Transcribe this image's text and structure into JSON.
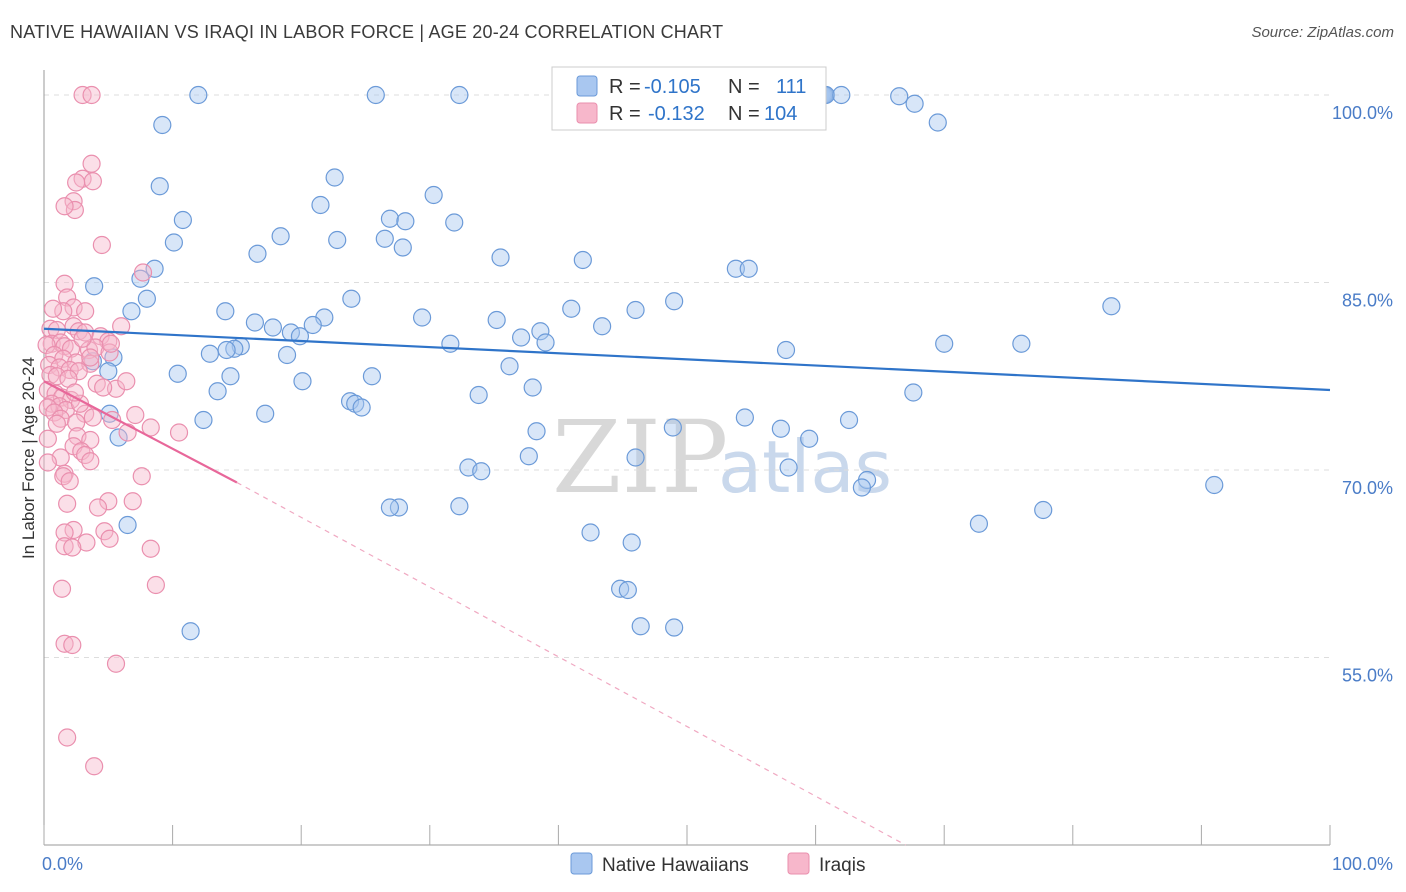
{
  "title": "NATIVE HAWAIIAN VS IRAQI IN LABOR FORCE | AGE 20-24 CORRELATION CHART",
  "source": "Source: ZipAtlas.com",
  "watermark": {
    "zip": "ZIP",
    "atlas": "atlas"
  },
  "colors": {
    "blue_fill": "#a9c7f0",
    "blue_stroke": "#6b9ad8",
    "blue_line": "#2f74c9",
    "pink_fill": "#f7b7cb",
    "pink_stroke": "#ea8fae",
    "pink_line": "#e8679a",
    "grid": "#dddddd",
    "tick_label": "#4a7cc7"
  },
  "stats": [
    {
      "r_label": "R =",
      "r_value": "-0.105",
      "n_label": "N =",
      "n_value": "111",
      "series": "Native Hawaiians"
    },
    {
      "r_label": "R =",
      "r_value": "-0.132",
      "n_label": "N =",
      "n_value": "104",
      "series": "Iraqis"
    }
  ],
  "chart_data": {
    "type": "scatter",
    "title": "NATIVE HAWAIIAN VS IRAQI IN LABOR FORCE | AGE 20-24 CORRELATION CHART",
    "xlabel": "",
    "ylabel": "In Labor Force | Age 20-24",
    "xlim": [
      0,
      100
    ],
    "ylim": [
      40,
      102
    ],
    "x_tick_labels": [
      {
        "value": 0,
        "label": "0.0%"
      },
      {
        "value": 100,
        "label": "100.0%"
      }
    ],
    "y_tick_labels": [
      {
        "value": 100,
        "label": "100.0%"
      },
      {
        "value": 85,
        "label": "85.0%"
      },
      {
        "value": 70,
        "label": "70.0%"
      },
      {
        "value": 55,
        "label": "55.0%"
      }
    ],
    "grid_y": [
      100,
      85,
      70,
      55
    ],
    "legend_position": "bottom",
    "series": [
      {
        "name": "Native Hawaiians",
        "color": "#6b9ad8",
        "trend": {
          "x0": 0,
          "y0": 81.3,
          "x1": 100,
          "y1": 76.4
        },
        "points": [
          [
            12.0,
            100.0
          ],
          [
            25.8,
            100.0
          ],
          [
            32.3,
            100.0
          ],
          [
            60.2,
            100.0
          ],
          [
            60.3,
            100.0
          ],
          [
            60.4,
            100.0
          ],
          [
            60.5,
            100.0
          ],
          [
            60.6,
            100.0
          ],
          [
            60.7,
            100.0
          ],
          [
            60.8,
            100.0
          ],
          [
            62.0,
            100.0
          ],
          [
            66.5,
            99.9
          ],
          [
            67.7,
            99.3
          ],
          [
            69.5,
            97.8
          ],
          [
            9.2,
            97.6
          ],
          [
            22.6,
            93.4
          ],
          [
            9.0,
            92.7
          ],
          [
            21.5,
            91.2
          ],
          [
            30.3,
            92.0
          ],
          [
            10.8,
            90.0
          ],
          [
            26.9,
            90.1
          ],
          [
            28.1,
            89.9
          ],
          [
            31.9,
            89.8
          ],
          [
            18.4,
            88.7
          ],
          [
            22.8,
            88.4
          ],
          [
            26.5,
            88.5
          ],
          [
            10.1,
            88.2
          ],
          [
            27.9,
            87.8
          ],
          [
            16.6,
            87.3
          ],
          [
            35.5,
            87.0
          ],
          [
            41.9,
            86.8
          ],
          [
            8.6,
            86.1
          ],
          [
            53.8,
            86.1
          ],
          [
            54.8,
            86.1
          ],
          [
            7.5,
            85.3
          ],
          [
            3.9,
            84.7
          ],
          [
            8.0,
            83.7
          ],
          [
            49.0,
            83.5
          ],
          [
            41.0,
            82.9
          ],
          [
            46.0,
            82.8
          ],
          [
            14.1,
            82.7
          ],
          [
            23.9,
            83.7
          ],
          [
            6.8,
            82.7
          ],
          [
            21.8,
            82.2
          ],
          [
            29.4,
            82.2
          ],
          [
            35.2,
            82.0
          ],
          [
            16.4,
            81.8
          ],
          [
            20.9,
            81.6
          ],
          [
            43.4,
            81.5
          ],
          [
            17.8,
            81.4
          ],
          [
            19.2,
            81.0
          ],
          [
            19.9,
            80.7
          ],
          [
            38.6,
            81.1
          ],
          [
            39.0,
            80.2
          ],
          [
            37.1,
            80.6
          ],
          [
            31.6,
            80.1
          ],
          [
            15.3,
            79.9
          ],
          [
            14.8,
            79.7
          ],
          [
            14.2,
            79.6
          ],
          [
            12.9,
            79.3
          ],
          [
            18.9,
            79.2
          ],
          [
            70.0,
            80.1
          ],
          [
            76.0,
            80.1
          ],
          [
            83.0,
            83.1
          ],
          [
            5.4,
            79.0
          ],
          [
            3.8,
            78.7
          ],
          [
            5.0,
            77.9
          ],
          [
            36.2,
            78.3
          ],
          [
            10.4,
            77.7
          ],
          [
            14.5,
            77.5
          ],
          [
            25.5,
            77.5
          ],
          [
            20.1,
            77.1
          ],
          [
            38.0,
            76.6
          ],
          [
            13.5,
            76.3
          ],
          [
            33.8,
            76.0
          ],
          [
            67.6,
            76.2
          ],
          [
            23.8,
            75.5
          ],
          [
            24.2,
            75.3
          ],
          [
            24.7,
            75.0
          ],
          [
            17.2,
            74.5
          ],
          [
            12.4,
            74.0
          ],
          [
            5.1,
            74.5
          ],
          [
            54.5,
            74.2
          ],
          [
            62.6,
            74.0
          ],
          [
            48.9,
            73.4
          ],
          [
            57.3,
            73.3
          ],
          [
            38.3,
            73.1
          ],
          [
            59.5,
            72.5
          ],
          [
            5.8,
            72.6
          ],
          [
            37.7,
            71.1
          ],
          [
            46.0,
            71.0
          ],
          [
            57.9,
            70.2
          ],
          [
            33.0,
            70.2
          ],
          [
            34.0,
            69.9
          ],
          [
            64.0,
            69.2
          ],
          [
            63.6,
            68.6
          ],
          [
            91.0,
            68.8
          ],
          [
            32.3,
            67.1
          ],
          [
            27.6,
            67.0
          ],
          [
            26.9,
            67.0
          ],
          [
            77.7,
            66.8
          ],
          [
            72.7,
            65.7
          ],
          [
            6.5,
            65.6
          ],
          [
            42.5,
            65.0
          ],
          [
            45.7,
            64.2
          ],
          [
            44.8,
            60.5
          ],
          [
            45.4,
            60.4
          ],
          [
            46.4,
            57.5
          ],
          [
            49.0,
            57.4
          ],
          [
            11.4,
            57.1
          ],
          [
            57.7,
            79.6
          ]
        ]
      },
      {
        "name": "Iraqis",
        "color": "#ea8fae",
        "trend": {
          "x0": 0,
          "y0": 77.1,
          "x1": 15.0,
          "y1": 69.0
        },
        "trend_dashed": {
          "x0": 15.0,
          "y0": 69.0,
          "x1": 67.0,
          "y1": 40.0
        },
        "points": [
          [
            3.0,
            100.0
          ],
          [
            3.7,
            100.0
          ],
          [
            3.7,
            94.5
          ],
          [
            3.0,
            93.3
          ],
          [
            3.8,
            93.1
          ],
          [
            2.5,
            93.0
          ],
          [
            2.3,
            91.5
          ],
          [
            2.4,
            90.8
          ],
          [
            1.6,
            91.1
          ],
          [
            4.5,
            88.0
          ],
          [
            7.7,
            85.8
          ],
          [
            1.6,
            84.9
          ],
          [
            1.8,
            83.8
          ],
          [
            2.3,
            83.0
          ],
          [
            3.2,
            82.7
          ],
          [
            1.5,
            82.7
          ],
          [
            0.7,
            82.9
          ],
          [
            6.0,
            81.5
          ],
          [
            0.5,
            81.3
          ],
          [
            2.3,
            81.5
          ],
          [
            1.0,
            81.2
          ],
          [
            2.7,
            81.1
          ],
          [
            3.2,
            81.0
          ],
          [
            4.4,
            80.7
          ],
          [
            5.0,
            80.3
          ],
          [
            0.6,
            80.1
          ],
          [
            1.3,
            80.2
          ],
          [
            0.2,
            80.0
          ],
          [
            1.6,
            79.9
          ],
          [
            2.1,
            79.7
          ],
          [
            3.5,
            79.6
          ],
          [
            4.0,
            79.8
          ],
          [
            5.1,
            79.4
          ],
          [
            0.8,
            79.2
          ],
          [
            1.5,
            78.9
          ],
          [
            2.5,
            78.6
          ],
          [
            3.6,
            78.5
          ],
          [
            0.4,
            78.4
          ],
          [
            1.2,
            78.2
          ],
          [
            2.0,
            78.0
          ],
          [
            2.7,
            77.9
          ],
          [
            0.5,
            77.6
          ],
          [
            1.0,
            77.5
          ],
          [
            1.9,
            77.3
          ],
          [
            4.1,
            76.9
          ],
          [
            5.6,
            76.5
          ],
          [
            0.3,
            76.4
          ],
          [
            0.9,
            76.1
          ],
          [
            1.4,
            75.8
          ],
          [
            2.1,
            75.6
          ],
          [
            0.6,
            75.3
          ],
          [
            1.2,
            75.1
          ],
          [
            0.3,
            75.0
          ],
          [
            1.7,
            74.8
          ],
          [
            0.8,
            74.6
          ],
          [
            3.2,
            74.5
          ],
          [
            7.1,
            74.4
          ],
          [
            3.8,
            74.2
          ],
          [
            1.3,
            74.1
          ],
          [
            5.3,
            74.0
          ],
          [
            2.5,
            73.8
          ],
          [
            8.3,
            73.4
          ],
          [
            10.5,
            73.0
          ],
          [
            6.5,
            73.0
          ],
          [
            2.6,
            72.7
          ],
          [
            0.3,
            72.5
          ],
          [
            3.6,
            72.4
          ],
          [
            2.3,
            71.9
          ],
          [
            2.9,
            71.5
          ],
          [
            3.2,
            71.2
          ],
          [
            3.6,
            70.7
          ],
          [
            1.3,
            71.0
          ],
          [
            0.3,
            70.6
          ],
          [
            1.6,
            69.7
          ],
          [
            1.5,
            69.5
          ],
          [
            7.6,
            69.5
          ],
          [
            2.0,
            69.1
          ],
          [
            6.9,
            67.5
          ],
          [
            1.8,
            67.3
          ],
          [
            5.0,
            67.5
          ],
          [
            4.2,
            67.0
          ],
          [
            2.3,
            65.2
          ],
          [
            1.6,
            65.0
          ],
          [
            4.7,
            65.1
          ],
          [
            5.1,
            64.5
          ],
          [
            3.3,
            64.2
          ],
          [
            1.6,
            63.9
          ],
          [
            2.2,
            63.8
          ],
          [
            8.3,
            63.7
          ],
          [
            8.7,
            60.8
          ],
          [
            1.4,
            60.5
          ],
          [
            1.6,
            56.1
          ],
          [
            2.2,
            56.0
          ],
          [
            5.6,
            54.5
          ],
          [
            1.8,
            48.6
          ],
          [
            3.9,
            46.3
          ],
          [
            3.6,
            79.0
          ],
          [
            4.6,
            76.6
          ],
          [
            2.8,
            75.3
          ],
          [
            1.0,
            73.7
          ],
          [
            6.4,
            77.1
          ],
          [
            5.2,
            80.1
          ],
          [
            3.0,
            80.5
          ],
          [
            2.4,
            76.2
          ]
        ]
      }
    ]
  }
}
